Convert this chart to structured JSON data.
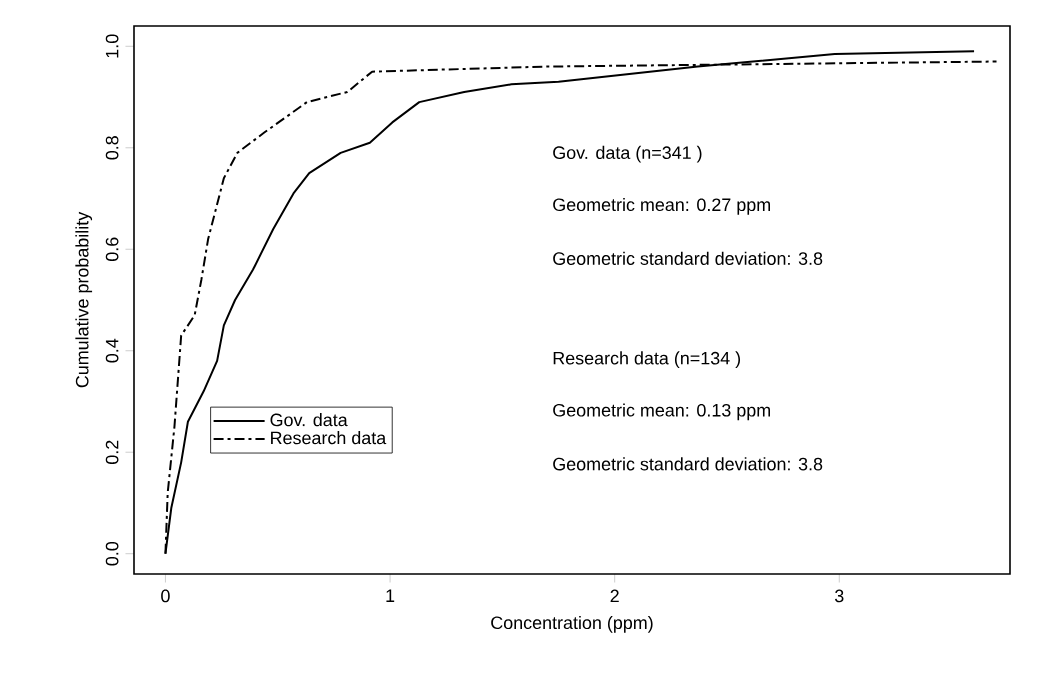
{
  "chart_data": {
    "type": "line",
    "xlabel": "Concentration (ppm)",
    "ylabel": "Cumulative probability",
    "xlim": [
      -0.14,
      3.76
    ],
    "ylim": [
      -0.04,
      1.04
    ],
    "xticks": [
      0,
      1,
      2,
      3
    ],
    "yticks": [
      {
        "value": 0,
        "label": "0.0"
      },
      {
        "value": 0.2,
        "label": "0.2"
      },
      {
        "value": 0.4,
        "label": "0.4"
      },
      {
        "value": 0.6,
        "label": "0.6"
      },
      {
        "value": 0.8,
        "label": "0.8"
      },
      {
        "value": 1.0,
        "label": "1.0"
      }
    ],
    "legend": "left",
    "series": [
      {
        "name": "Gov. data",
        "color": "#000000",
        "line_style": "solid",
        "x": [
          0,
          0.026,
          0.07,
          0.1,
          0.17,
          0.23,
          0.26,
          0.31,
          0.39,
          0.48,
          0.57,
          0.64,
          0.78,
          0.91,
          1.01,
          1.13,
          1.33,
          1.54,
          1.75,
          2.37,
          2.98,
          3.6
        ],
        "values": [
          0,
          0.09,
          0.18,
          0.26,
          0.32,
          0.38,
          0.45,
          0.5,
          0.56,
          0.64,
          0.71,
          0.75,
          0.79,
          0.81,
          0.85,
          0.89,
          0.91,
          0.925,
          0.93,
          0.96,
          0.985,
          0.99
        ]
      },
      {
        "name": "Research data",
        "color": "#000000",
        "line_style": "dashdot",
        "x": [
          0,
          0.01,
          0.04,
          0.07,
          0.13,
          0.16,
          0.19,
          0.26,
          0.32,
          0.44,
          0.63,
          0.81,
          0.92,
          1.69,
          3.7
        ],
        "values": [
          0,
          0.12,
          0.25,
          0.43,
          0.47,
          0.54,
          0.62,
          0.74,
          0.79,
          0.83,
          0.89,
          0.91,
          0.95,
          0.96,
          0.97
        ]
      }
    ],
    "annotations": [
      "Gov. data (n=341 )",
      "Geometric mean: 0.27 ppm",
      "Geometric standard deviation: 3.8",
      "Research data (n=134 )",
      "Geometric mean: 0.13 ppm",
      "Geometric standard deviation: 3.8"
    ]
  }
}
